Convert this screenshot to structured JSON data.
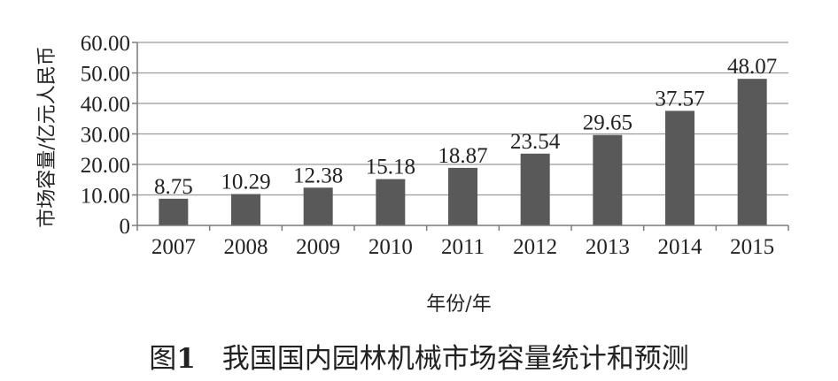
{
  "caption": {
    "figure_label": "图",
    "figure_number": "1",
    "text": "我国国内园林机械市场容量统计和预测"
  },
  "chart_data": {
    "type": "bar",
    "title": "",
    "xlabel": "年份/年",
    "ylabel": "市场容量/亿元人民币",
    "categories": [
      "2007",
      "2008",
      "2009",
      "2010",
      "2011",
      "2012",
      "2013",
      "2014",
      "2015"
    ],
    "values": [
      8.75,
      10.29,
      12.38,
      15.18,
      18.87,
      23.54,
      29.65,
      37.57,
      48.07
    ],
    "data_labels": [
      "8.75",
      "10.29",
      "12.38",
      "15.18",
      "18.87",
      "23.54",
      "29.65",
      "37.57",
      "48.07"
    ],
    "ylim": [
      0,
      60
    ],
    "yticks": [
      "0",
      "10.00",
      "20.00",
      "30.00",
      "40.00",
      "50.00",
      "60.00"
    ],
    "grid": true,
    "bar_color": "#595959"
  }
}
